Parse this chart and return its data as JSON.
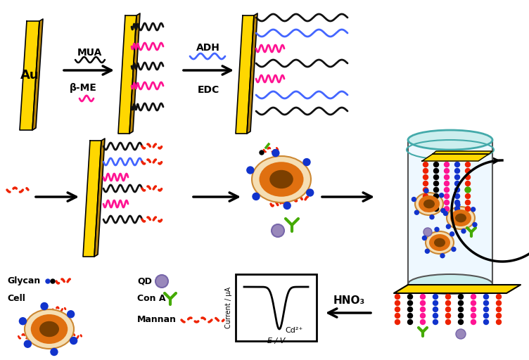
{
  "bg_color": "#ffffff",
  "gold_color": "#FFD700",
  "gold_dark": "#B8860B",
  "gold_edge": "#888800",
  "black_wave_color": "#111111",
  "pink_wave_color": "#FF1493",
  "blue_wave_color": "#4466FF",
  "red_dot_color": "#EE2200",
  "blue_dot_color": "#1133CC",
  "green_conA_color": "#44AA00",
  "gray_qd_color": "#9988BB",
  "cell_cream": "#F5DEB3",
  "cell_orange": "#E07010",
  "cell_nucleus": "#7B3F00",
  "arrow_color": "#111111",
  "labels": {
    "Au": "Au",
    "MUA": "MUA",
    "beta_ME": "β-ME",
    "ADH": "ADH",
    "EDC": "EDC",
    "HNO3": "HNO₃",
    "Glycan": "Glycan",
    "Cell": "Cell",
    "QD": "QD",
    "ConA": "Con A",
    "Mannan": "Mannan",
    "Current": "Current / μA",
    "EV": "E / V",
    "Cd2": "Cd²⁺"
  }
}
